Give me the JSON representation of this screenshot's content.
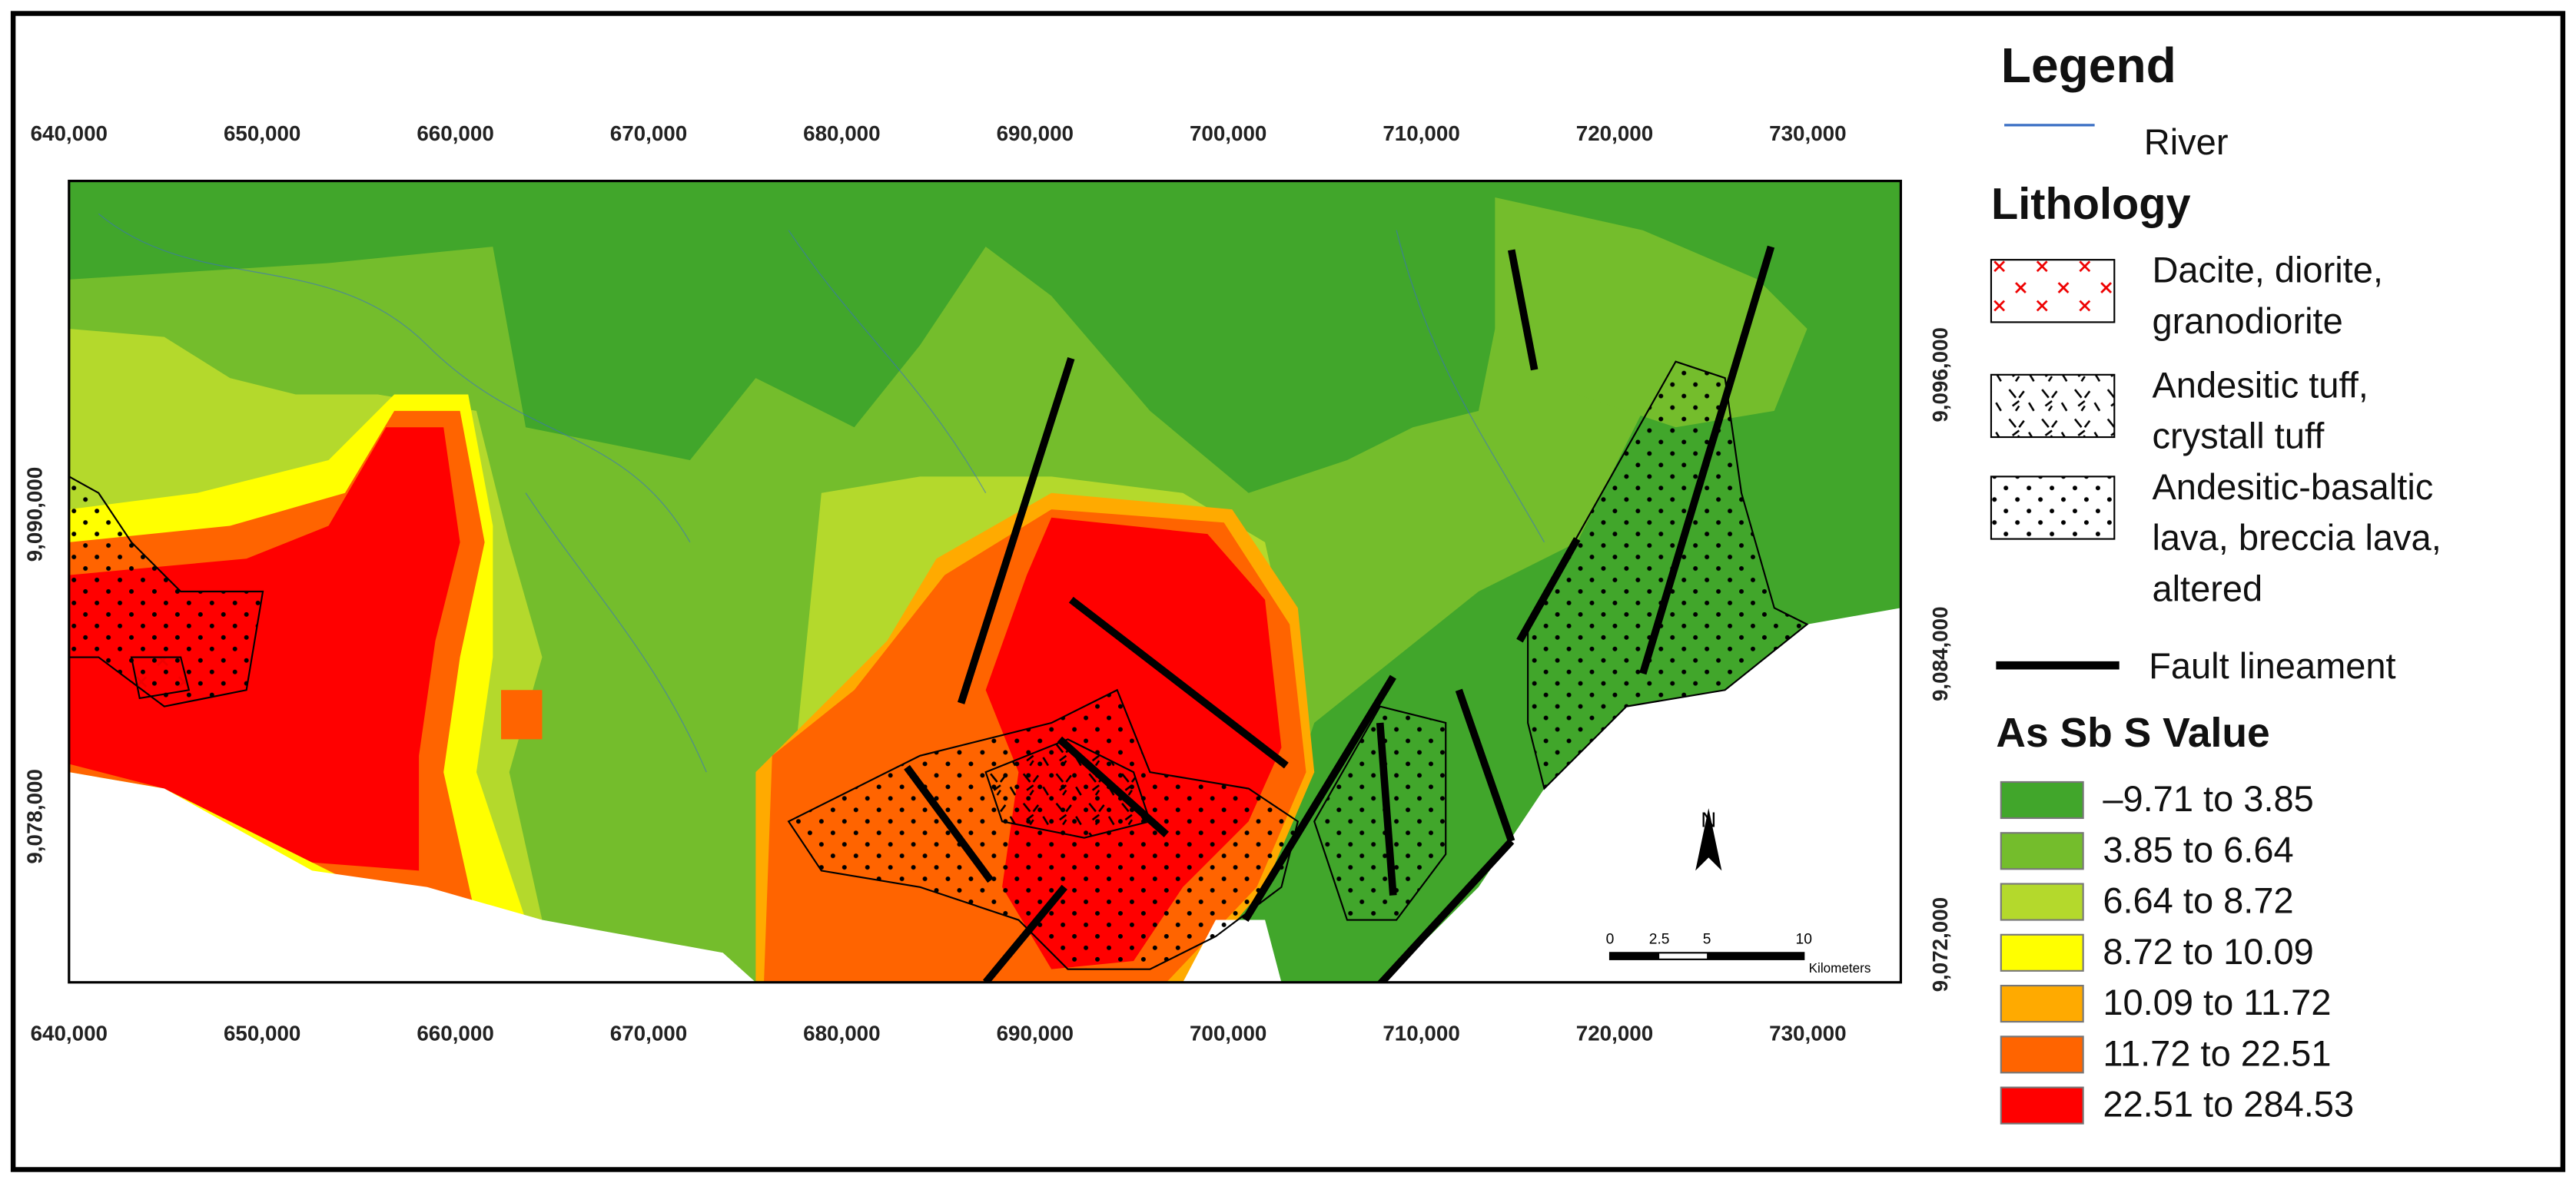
{
  "header": {
    "title": "Legend"
  },
  "legend": {
    "river": "River",
    "lithology_title": "Lithology",
    "lithology": [
      {
        "lines": [
          "Dacite, diorite,",
          "granodiorite"
        ]
      },
      {
        "lines": [
          "Andesitic tuff,",
          "crystall tuff"
        ]
      },
      {
        "lines": [
          "Andesitic-basaltic",
          "lava, breccia lava,",
          "altered"
        ]
      }
    ],
    "fault": "Fault lineament",
    "value_title": "As Sb S Value",
    "classes": [
      {
        "label": "–9.71 to 3.85",
        "color": "#41a62b"
      },
      {
        "label": "3.85 to 6.64",
        "color": "#74bd2c"
      },
      {
        "label": "6.64 to 8.72",
        "color": "#b4d92c"
      },
      {
        "label": "8.72 to 10.09",
        "color": "#ffff00"
      },
      {
        "label": "10.09 to 11.72",
        "color": "#ffaa00"
      },
      {
        "label": "11.72 to 22.51",
        "color": "#ff6400"
      },
      {
        "label": "22.51 to 284.53",
        "color": "#ff0000"
      }
    ]
  },
  "axes": {
    "top": [
      "640,000",
      "650,000",
      "660,000",
      "670,000",
      "680,000",
      "690,000",
      "700,000",
      "710,000",
      "720,000",
      "730,000"
    ],
    "bottom": [
      "640,000",
      "650,000",
      "660,000",
      "670,000",
      "680,000",
      "690,000",
      "700,000",
      "710,000",
      "720,000",
      "730,000"
    ],
    "left": [
      "9,090,000",
      "9,078,000"
    ],
    "right": [
      "9,096,000",
      "9,084,000",
      "9,072,000"
    ]
  },
  "scale_bar": {
    "labels": [
      "0",
      "2.5",
      "5",
      "10"
    ],
    "unit": "Kilometers"
  },
  "north": "N"
}
